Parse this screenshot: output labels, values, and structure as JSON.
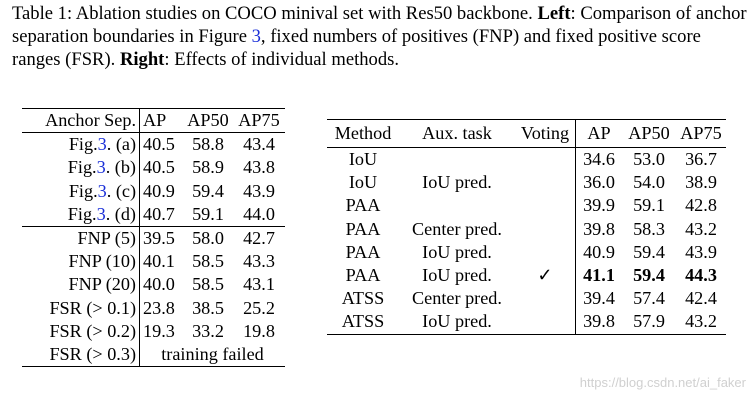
{
  "caption": {
    "label": "Table 1:",
    "intro": " Ablation studies on COCO minival set with Res50 backbone. ",
    "left_bold": "Left",
    "part1": ": Comparison of anchor separation boundaries in Figure ",
    "figure_ref": "3",
    "part2": ", fixed numbers of positives (FNP) and fixed positive score ranges (FSR). ",
    "right_bold": "Right",
    "part3": ": Effects of individual methods."
  },
  "left_table": {
    "headers": [
      "Anchor Sep.",
      "AP",
      "AP50",
      "AP75"
    ],
    "fig_rows": [
      {
        "prefix": "Fig.",
        "ref": "3",
        "suffix": ". (a)",
        "ap": "40.5",
        "ap50": "58.8",
        "ap75": "43.4"
      },
      {
        "prefix": "Fig.",
        "ref": "3",
        "suffix": ". (b)",
        "ap": "40.5",
        "ap50": "58.9",
        "ap75": "43.8"
      },
      {
        "prefix": "Fig.",
        "ref": "3",
        "suffix": ". (c)",
        "ap": "40.9",
        "ap50": "59.4",
        "ap75": "43.9"
      },
      {
        "prefix": "Fig.",
        "ref": "3",
        "suffix": ". (d)",
        "ap": "40.7",
        "ap50": "59.1",
        "ap75": "44.0"
      }
    ],
    "other_rows": [
      {
        "label": "FNP (5)",
        "ap": "39.5",
        "ap50": "58.0",
        "ap75": "42.7"
      },
      {
        "label": "FNP (10)",
        "ap": "40.1",
        "ap50": "58.5",
        "ap75": "43.3"
      },
      {
        "label": "FNP (20)",
        "ap": "40.0",
        "ap50": "58.5",
        "ap75": "43.1"
      },
      {
        "label": "FSR (> 0.1)",
        "ap": "23.8",
        "ap50": "38.5",
        "ap75": "25.2"
      },
      {
        "label": "FSR (> 0.2)",
        "ap": "19.3",
        "ap50": "33.2",
        "ap75": "19.8"
      }
    ],
    "failed_row": {
      "label": "FSR (> 0.3)",
      "text": "training failed"
    }
  },
  "right_table": {
    "headers": [
      "Method",
      "Aux. task",
      "Voting",
      "AP",
      "AP50",
      "AP75"
    ],
    "rows": [
      {
        "method": "IoU",
        "aux": "",
        "voting": "",
        "ap": "34.6",
        "ap50": "53.0",
        "ap75": "36.7"
      },
      {
        "method": "IoU",
        "aux": "IoU pred.",
        "voting": "",
        "ap": "36.0",
        "ap50": "54.0",
        "ap75": "38.9"
      },
      {
        "method": "PAA",
        "aux": "",
        "voting": "",
        "ap": "39.9",
        "ap50": "59.1",
        "ap75": "42.8"
      },
      {
        "method": "PAA",
        "aux": "Center pred.",
        "voting": "",
        "ap": "39.8",
        "ap50": "58.3",
        "ap75": "43.2"
      },
      {
        "method": "PAA",
        "aux": "IoU pred.",
        "voting": "",
        "ap": "40.9",
        "ap50": "59.4",
        "ap75": "43.9"
      },
      {
        "method": "PAA",
        "aux": "IoU pred.",
        "voting": "✓",
        "ap": "41.1",
        "ap50": "59.4",
        "ap75": "44.3"
      },
      {
        "method": "ATSS",
        "aux": "Center pred.",
        "voting": "",
        "ap": "39.4",
        "ap50": "57.4",
        "ap75": "42.4"
      },
      {
        "method": "ATSS",
        "aux": "IoU pred.",
        "voting": "",
        "ap": "39.8",
        "ap50": "57.9",
        "ap75": "43.2"
      }
    ]
  },
  "watermark": "https://blog.csdn.net/ai_faker"
}
